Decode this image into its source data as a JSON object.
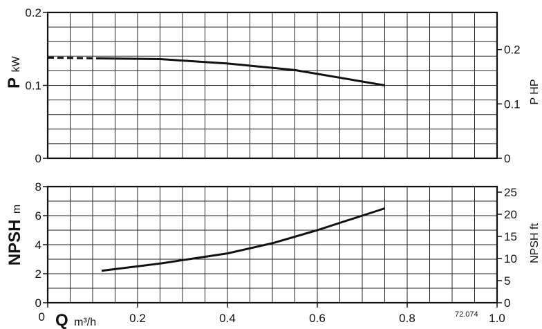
{
  "chart_data": [
    {
      "type": "line",
      "x_range": [
        0,
        1.0
      ],
      "ylim": [
        0,
        0.2
      ],
      "y_ticks": [
        "0",
        "0.1",
        "0.2"
      ],
      "y_label": "P",
      "y_unit": "kW",
      "y2_ticks": [
        "0",
        "0.1",
        "0.2"
      ],
      "y2_tick_values": [
        0,
        0.0746,
        0.1491
      ],
      "y2_label": "P HP",
      "grid": true,
      "series": [
        {
          "style": "dashed",
          "x": [
            0,
            0.12
          ],
          "y": [
            0.138,
            0.137
          ]
        },
        {
          "style": "solid",
          "x": [
            0.12,
            0.25,
            0.4,
            0.55,
            0.75
          ],
          "y": [
            0.137,
            0.136,
            0.13,
            0.121,
            0.1
          ]
        }
      ]
    },
    {
      "type": "line",
      "x_range": [
        0,
        1.0
      ],
      "ylim": [
        0,
        8
      ],
      "y_ticks": [
        "0",
        "2",
        "4",
        "6",
        "8"
      ],
      "y_label": "NPSH",
      "y_unit": "m",
      "y2_ticks": [
        "0",
        "5",
        "10",
        "15",
        "20",
        "25"
      ],
      "y2_tick_values": [
        0,
        1.524,
        3.048,
        4.572,
        6.096,
        7.62
      ],
      "y2_label": "NPSH ft",
      "grid": true,
      "x_ticks": [
        "0",
        "0.2",
        "0.4",
        "0.6",
        "0.8",
        "1.0"
      ],
      "x_label": "Q",
      "x_unit": "m³/h",
      "series": [
        {
          "style": "solid",
          "x": [
            0.12,
            0.25,
            0.4,
            0.5,
            0.6,
            0.7,
            0.75
          ],
          "y": [
            2.2,
            2.7,
            3.4,
            4.1,
            5.0,
            6.0,
            6.5
          ]
        }
      ]
    }
  ],
  "figure_code": "72.074"
}
